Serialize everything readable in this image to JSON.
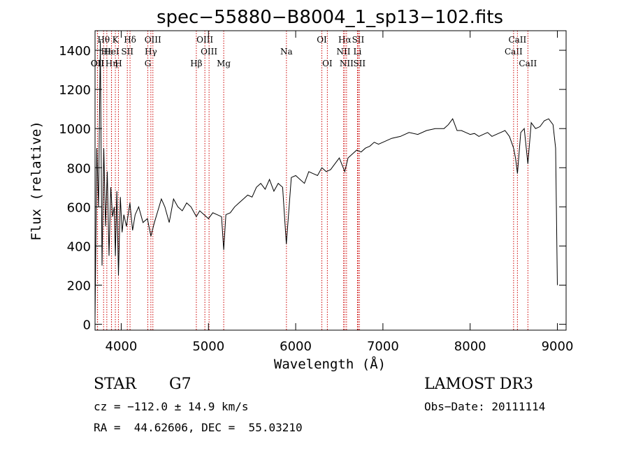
{
  "chart_data": {
    "type": "line",
    "title": "spec−55880−B8004_1_sp13−102.fits",
    "xlabel": "Wavelength (Å)",
    "ylabel": "Flux (relative)",
    "xlim": [
      3700,
      9100
    ],
    "ylim": [
      -30,
      1500
    ],
    "xticks": [
      {
        "value": 4000,
        "label": "4000"
      },
      {
        "value": 5000,
        "label": "5000"
      },
      {
        "value": 6000,
        "label": "6000"
      },
      {
        "value": 7000,
        "label": "7000"
      },
      {
        "value": 8000,
        "label": "8000"
      },
      {
        "value": 9000,
        "label": "9000"
      }
    ],
    "yticks": [
      {
        "value": 0,
        "label": "0"
      },
      {
        "value": 200,
        "label": "200"
      },
      {
        "value": 400,
        "label": "400"
      },
      {
        "value": 600,
        "label": "600"
      },
      {
        "value": 800,
        "label": "800"
      },
      {
        "value": 1000,
        "label": "1000"
      },
      {
        "value": 1200,
        "label": "1200"
      },
      {
        "value": 1400,
        "label": "1400"
      }
    ],
    "series": [
      {
        "name": "flux",
        "x": [
          3700,
          3720,
          3740,
          3760,
          3780,
          3800,
          3820,
          3840,
          3860,
          3880,
          3900,
          3920,
          3933,
          3950,
          3968,
          3990,
          4010,
          4030,
          4060,
          4100,
          4130,
          4160,
          4200,
          4250,
          4300,
          4340,
          4380,
          4420,
          4460,
          4500,
          4550,
          4600,
          4650,
          4700,
          4750,
          4800,
          4861,
          4900,
          4950,
          5000,
          5050,
          5100,
          5150,
          5175,
          5200,
          5250,
          5300,
          5350,
          5400,
          5450,
          5500,
          5550,
          5600,
          5650,
          5700,
          5750,
          5800,
          5850,
          5893,
          5950,
          6000,
          6050,
          6100,
          6150,
          6200,
          6250,
          6300,
          6350,
          6400,
          6450,
          6500,
          6563,
          6600,
          6650,
          6700,
          6750,
          6800,
          6850,
          6900,
          6950,
          7000,
          7100,
          7200,
          7300,
          7400,
          7500,
          7600,
          7700,
          7750,
          7800,
          7850,
          7900,
          7950,
          8000,
          8050,
          8100,
          8150,
          8200,
          8250,
          8300,
          8350,
          8400,
          8450,
          8498,
          8520,
          8542,
          8580,
          8620,
          8662,
          8700,
          8750,
          8800,
          8850,
          8900,
          8950,
          8980,
          9000
        ],
        "y": [
          30,
          900,
          600,
          1450,
          300,
          900,
          500,
          780,
          350,
          700,
          550,
          600,
          350,
          680,
          250,
          650,
          470,
          560,
          500,
          620,
          480,
          560,
          600,
          520,
          540,
          450,
          520,
          580,
          640,
          600,
          520,
          640,
          600,
          580,
          620,
          600,
          550,
          580,
          560,
          540,
          570,
          560,
          550,
          380,
          560,
          570,
          600,
          620,
          640,
          660,
          650,
          700,
          720,
          690,
          740,
          680,
          720,
          700,
          410,
          750,
          760,
          740,
          720,
          780,
          770,
          760,
          800,
          780,
          790,
          820,
          850,
          780,
          850,
          870,
          890,
          880,
          900,
          910,
          930,
          920,
          930,
          950,
          960,
          980,
          970,
          990,
          1000,
          1000,
          1020,
          1050,
          990,
          990,
          980,
          970,
          975,
          960,
          970,
          980,
          960,
          970,
          980,
          990,
          960,
          900,
          850,
          770,
          980,
          1000,
          820,
          1030,
          1000,
          1010,
          1040,
          1050,
          1020,
          900,
          200
        ]
      }
    ],
    "line_markers": [
      {
        "label": "OII",
        "x": 3727,
        "row": 1
      },
      {
        "label": "Hθ",
        "x": 3798,
        "row": 3
      },
      {
        "label": "OII",
        "x": 3729,
        "row": 1
      },
      {
        "label": "Hε",
        "x": 3835,
        "row": 2
      },
      {
        "label": "K",
        "x": 3933,
        "row": 3
      },
      {
        "label": "H",
        "x": 3968,
        "row": 1
      },
      {
        "label": "Hη",
        "x": 3889,
        "row": 1
      },
      {
        "label": "HeI",
        "x": 3888,
        "row": 2
      },
      {
        "label": "SII",
        "x": 4070,
        "row": 2
      },
      {
        "label": "Hδ",
        "x": 4101,
        "row": 3
      },
      {
        "label": "OIII",
        "x": 4363,
        "row": 3
      },
      {
        "label": "Hγ",
        "x": 4340,
        "row": 2
      },
      {
        "label": "G",
        "x": 4305,
        "row": 1
      },
      {
        "label": "Hβ",
        "x": 4861,
        "row": 1
      },
      {
        "label": "OIII",
        "x": 4959,
        "row": 3
      },
      {
        "label": "OIII",
        "x": 5007,
        "row": 2
      },
      {
        "label": "Mg",
        "x": 5175,
        "row": 1
      },
      {
        "label": "Na",
        "x": 5894,
        "row": 2
      },
      {
        "label": "OI",
        "x": 6300,
        "row": 3
      },
      {
        "label": "OI",
        "x": 6363,
        "row": 1
      },
      {
        "label": "Hα",
        "x": 6563,
        "row": 3
      },
      {
        "label": "NII",
        "x": 6548,
        "row": 2
      },
      {
        "label": "NII",
        "x": 6583,
        "row": 1
      },
      {
        "label": "SII",
        "x": 6716,
        "row": 3
      },
      {
        "label": "Li",
        "x": 6708,
        "row": 2
      },
      {
        "label": "SII",
        "x": 6731,
        "row": 1
      },
      {
        "label": "CaII",
        "x": 8498,
        "row": 2
      },
      {
        "label": "CaII",
        "x": 8542,
        "row": 3
      },
      {
        "label": "CaII",
        "x": 8662,
        "row": 1
      }
    ]
  },
  "info": {
    "object_class": "STAR",
    "subclass": "G7",
    "survey": "LAMOST DR3",
    "redshift": "cz = −112.0 ± 14.9 km/s",
    "obs_date": "Obs−Date: 20111114",
    "coords": "RA =  44.62606, DEC =  55.03210"
  }
}
